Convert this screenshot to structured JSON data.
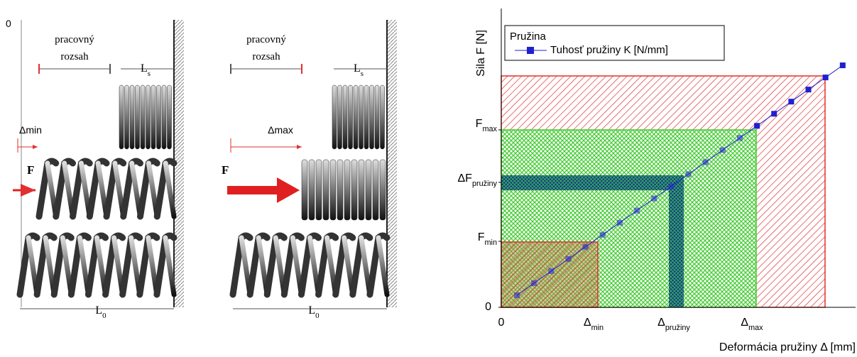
{
  "left_panel": {
    "zero": "0",
    "panel_1": {
      "range_top": "pracovný",
      "range_bottom": "rozsah",
      "ls": {
        "main": "L",
        "sub": "s"
      },
      "delta": "Δmin",
      "force": "F",
      "l0": {
        "main": "L",
        "sub": "0"
      }
    },
    "panel_2": {
      "range_top": "pracovný",
      "range_bottom": "rozsah",
      "ls": {
        "main": "L",
        "sub": "s"
      },
      "delta": "Δmax",
      "force": "F",
      "l0": {
        "main": "L",
        "sub": "0"
      }
    }
  },
  "chart": {
    "y_axis_label": "Sila F [N]",
    "x_axis_label": "Deformácia pružiny Δ [mm]",
    "legend_title": "Pružina",
    "legend_entry": "Tuhosť pružiny K [N/mm]",
    "y_labels": [
      {
        "main": "F",
        "sub": "max"
      },
      {
        "main": "ΔF",
        "sub": "pružiny"
      },
      {
        "main": "F",
        "sub": "min"
      },
      {
        "main": "0"
      }
    ],
    "x_labels": [
      {
        "main": "0"
      },
      {
        "main": "Δ",
        "sub": "min"
      },
      {
        "main": "Δ",
        "sub": "pružiny"
      },
      {
        "main": "Δ",
        "sub": "max"
      }
    ]
  }
}
